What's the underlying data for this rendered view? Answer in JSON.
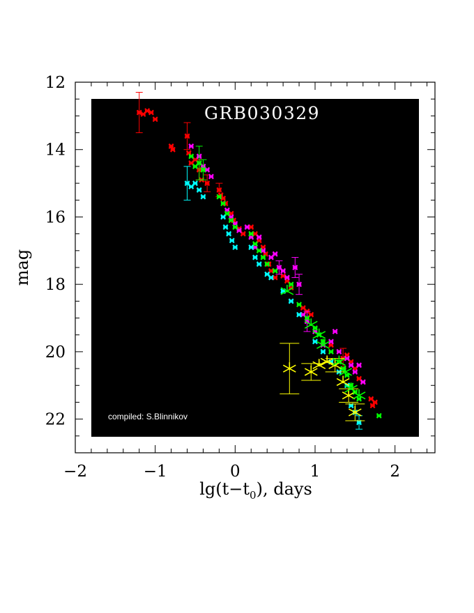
{
  "chart_data": {
    "type": "scatter",
    "title": "GRB030329",
    "annotation": "compiled: S.Blinnikov",
    "xlabel": "lg(t−t",
    "xlabel_sub": "0",
    "xlabel_tail": "), days",
    "ylabel": "mag",
    "xlim": [
      -2,
      2.5
    ],
    "ylim": [
      12,
      23
    ],
    "y_inverted": true,
    "x_ticks": [
      -2,
      -1,
      0,
      1,
      2
    ],
    "x_tick_labels": [
      "−2",
      "−1",
      "0",
      "1",
      "2"
    ],
    "y_ticks": [
      12,
      14,
      16,
      18,
      20,
      22
    ],
    "y_tick_labels": [
      "12",
      "14",
      "16",
      "18",
      "20",
      "22"
    ],
    "plot_background": "#000000",
    "series": [
      {
        "color": "#ff0000",
        "points": [
          [
            -1.2,
            12.9
          ],
          [
            -1.15,
            12.95
          ],
          [
            -1.1,
            12.85
          ],
          [
            -1.05,
            12.9
          ],
          [
            -1.0,
            13.1
          ],
          [
            -0.8,
            13.9
          ],
          [
            -0.78,
            14.0
          ],
          [
            -0.6,
            13.6
          ],
          [
            -0.58,
            14.1
          ],
          [
            -0.55,
            14.4
          ],
          [
            -0.5,
            14.3
          ],
          [
            -0.45,
            14.6
          ],
          [
            -0.42,
            14.9
          ],
          [
            -0.35,
            15.0
          ],
          [
            -0.2,
            15.2
          ],
          [
            -0.18,
            15.35
          ],
          [
            -0.15,
            15.45
          ],
          [
            -0.12,
            15.6
          ],
          [
            -0.05,
            15.9
          ],
          [
            -0.02,
            16.1
          ],
          [
            0.05,
            16.35
          ],
          [
            0.1,
            16.5
          ],
          [
            0.2,
            16.3
          ],
          [
            0.25,
            16.5
          ],
          [
            0.3,
            16.7
          ],
          [
            0.35,
            16.9
          ],
          [
            0.38,
            17.1
          ],
          [
            0.42,
            17.4
          ],
          [
            0.45,
            17.6
          ],
          [
            0.5,
            17.8
          ],
          [
            0.6,
            17.75
          ],
          [
            0.65,
            17.9
          ],
          [
            0.7,
            18.1
          ],
          [
            0.85,
            18.7
          ],
          [
            0.9,
            18.8
          ],
          [
            0.95,
            18.9
          ],
          [
            1.2,
            19.8
          ],
          [
            1.35,
            20.2
          ],
          [
            1.4,
            20.1
          ],
          [
            1.45,
            20.3
          ],
          [
            1.5,
            20.5
          ],
          [
            1.55,
            20.8
          ],
          [
            1.6,
            20.9
          ],
          [
            1.7,
            21.4
          ],
          [
            1.72,
            21.6
          ],
          [
            1.75,
            21.5
          ]
        ],
        "errors": [
          [
            -1.2,
            12.9,
            0.6
          ],
          [
            -0.6,
            13.6,
            0.4
          ],
          [
            -0.45,
            14.6,
            0.3
          ],
          [
            -0.35,
            15.0,
            0.25
          ],
          [
            -0.2,
            15.2,
            0.2
          ],
          [
            1.35,
            20.2,
            0.3
          ]
        ]
      },
      {
        "color": "#ff00ff",
        "points": [
          [
            -0.55,
            13.9
          ],
          [
            -0.45,
            14.2
          ],
          [
            -0.4,
            14.5
          ],
          [
            -0.35,
            14.6
          ],
          [
            -0.3,
            14.8
          ],
          [
            -0.1,
            15.8
          ],
          [
            -0.05,
            16.0
          ],
          [
            0.0,
            16.2
          ],
          [
            0.05,
            16.4
          ],
          [
            0.15,
            16.3
          ],
          [
            0.2,
            16.6
          ],
          [
            0.25,
            16.9
          ],
          [
            0.3,
            16.6
          ],
          [
            0.35,
            17.0
          ],
          [
            0.45,
            17.2
          ],
          [
            0.5,
            17.1
          ],
          [
            0.55,
            17.5
          ],
          [
            0.6,
            17.6
          ],
          [
            0.65,
            17.8
          ],
          [
            0.75,
            17.5
          ],
          [
            0.8,
            18.0
          ],
          [
            0.85,
            18.9
          ],
          [
            0.9,
            19.1
          ],
          [
            1.0,
            19.4
          ],
          [
            1.1,
            19.8
          ],
          [
            1.2,
            19.7
          ],
          [
            1.25,
            19.4
          ],
          [
            1.3,
            20.0
          ],
          [
            1.4,
            20.2
          ],
          [
            1.45,
            20.4
          ],
          [
            1.5,
            20.6
          ],
          [
            1.55,
            20.4
          ],
          [
            1.6,
            20.9
          ]
        ],
        "errors": [
          [
            0.55,
            17.5,
            0.2
          ],
          [
            0.75,
            17.5,
            0.3
          ],
          [
            0.8,
            18.0,
            0.3
          ],
          [
            0.9,
            19.1,
            0.3
          ]
        ]
      },
      {
        "color": "#00ff00",
        "points": [
          [
            -0.55,
            14.2
          ],
          [
            -0.5,
            14.5
          ],
          [
            -0.45,
            14.4
          ],
          [
            -0.4,
            14.6
          ],
          [
            -0.2,
            15.4
          ],
          [
            -0.15,
            15.6
          ],
          [
            -0.1,
            15.9
          ],
          [
            -0.05,
            16.1
          ],
          [
            0.0,
            16.3
          ],
          [
            0.2,
            16.5
          ],
          [
            0.25,
            16.8
          ],
          [
            0.3,
            17.0
          ],
          [
            0.35,
            17.2
          ],
          [
            0.4,
            17.4
          ],
          [
            0.5,
            17.6
          ],
          [
            0.6,
            18.2
          ],
          [
            0.7,
            18.0
          ],
          [
            0.8,
            18.6
          ],
          [
            0.9,
            19.0
          ],
          [
            1.0,
            19.3
          ],
          [
            1.05,
            19.5
          ],
          [
            1.1,
            19.7
          ],
          [
            1.2,
            20.0
          ],
          [
            1.3,
            20.3
          ],
          [
            1.35,
            20.5
          ],
          [
            1.4,
            20.7
          ],
          [
            1.45,
            21.0
          ],
          [
            1.5,
            21.2
          ],
          [
            1.55,
            21.4
          ],
          [
            1.8,
            21.9
          ]
        ],
        "errors": [
          [
            -0.45,
            14.4,
            0.5
          ],
          [
            -0.4,
            14.6,
            0.3
          ]
        ]
      },
      {
        "color": "#00ffff",
        "points": [
          [
            -0.6,
            15.0
          ],
          [
            -0.55,
            15.1
          ],
          [
            -0.5,
            15.0
          ],
          [
            -0.45,
            15.2
          ],
          [
            -0.4,
            15.4
          ],
          [
            -0.15,
            16.0
          ],
          [
            -0.12,
            16.3
          ],
          [
            -0.08,
            16.5
          ],
          [
            -0.04,
            16.7
          ],
          [
            0.0,
            16.9
          ],
          [
            0.2,
            16.9
          ],
          [
            0.25,
            17.2
          ],
          [
            0.3,
            17.4
          ],
          [
            0.4,
            17.7
          ],
          [
            0.45,
            17.8
          ],
          [
            0.6,
            18.2
          ],
          [
            0.7,
            18.5
          ],
          [
            0.8,
            18.9
          ],
          [
            1.0,
            19.7
          ],
          [
            1.1,
            20.0
          ],
          [
            1.2,
            20.3
          ],
          [
            1.3,
            20.6
          ],
          [
            1.4,
            21.0
          ],
          [
            1.45,
            21.6
          ],
          [
            1.5,
            21.8
          ],
          [
            1.55,
            22.1
          ]
        ],
        "errors": [
          [
            -0.6,
            15.0,
            0.5
          ],
          [
            1.55,
            22.1,
            0.2
          ]
        ]
      },
      {
        "color": "#ffff00",
        "big_markers": true,
        "points": [
          [
            0.68,
            20.5
          ],
          [
            0.95,
            20.6
          ],
          [
            1.05,
            20.4
          ],
          [
            1.15,
            20.3
          ],
          [
            1.25,
            20.4
          ],
          [
            1.35,
            20.9
          ],
          [
            1.42,
            21.3
          ],
          [
            1.5,
            21.8
          ]
        ],
        "errors": [
          [
            0.68,
            20.5,
            0.75
          ],
          [
            0.95,
            20.6,
            0.25
          ],
          [
            1.25,
            20.4,
            0.2
          ],
          [
            1.42,
            21.3,
            0.2
          ],
          [
            1.5,
            21.8,
            0.25
          ]
        ]
      },
      {
        "color": "#00ff00",
        "big_markers": true,
        "points": [
          [
            0.65,
            18.2
          ],
          [
            0.95,
            19.2
          ],
          [
            1.05,
            19.5
          ],
          [
            1.1,
            19.8
          ],
          [
            1.3,
            20.3
          ],
          [
            1.38,
            20.6
          ],
          [
            1.45,
            21.1
          ],
          [
            1.55,
            21.3
          ]
        ],
        "errors": []
      }
    ]
  }
}
